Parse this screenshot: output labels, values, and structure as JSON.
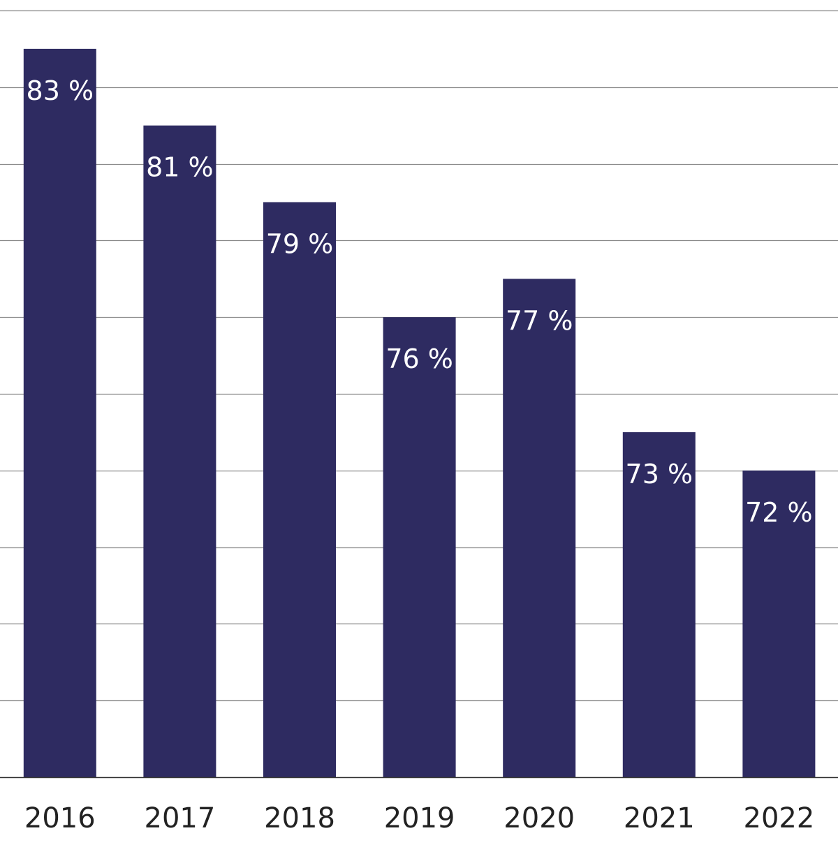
{
  "chart_data": {
    "type": "bar",
    "title": "",
    "xlabel": "",
    "ylabel": "",
    "categories": [
      "2016",
      "2017",
      "2018",
      "2019",
      "2020",
      "2021",
      "2022"
    ],
    "values": [
      83,
      81,
      79,
      76,
      77,
      73,
      72
    ],
    "data_labels": [
      "83 %",
      "81 %",
      "79 %",
      "76 %",
      "77 %",
      "73 %",
      "72 %"
    ],
    "ylim": [
      64,
      84
    ],
    "grid_step": 2,
    "grid": true,
    "legend": "none",
    "bar_color": "#2e2b61",
    "gridline_color": "#8a8a8a",
    "axis_color": "#333333"
  }
}
